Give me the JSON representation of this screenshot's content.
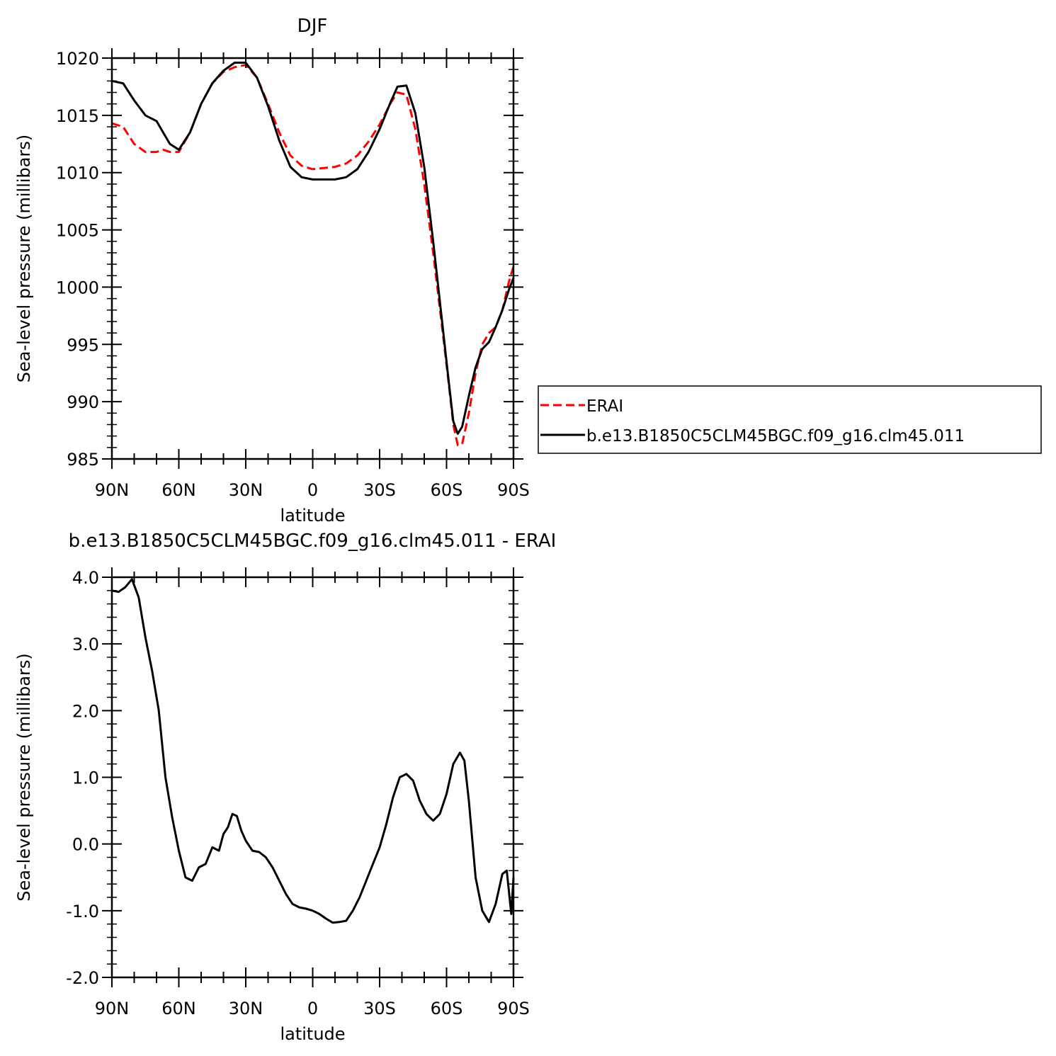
{
  "chart_data": [
    {
      "type": "line",
      "title": "DJF",
      "xlabel": "latitude",
      "ylabel": "Sea-level pressure (millibars)",
      "xlim": [
        90,
        -90
      ],
      "ylim": [
        985,
        1020
      ],
      "x_ticks": [
        90,
        60,
        30,
        0,
        -30,
        -60,
        -90
      ],
      "x_tick_labels": [
        "90N",
        "60N",
        "30N",
        "0",
        "30S",
        "60S",
        "90S"
      ],
      "y_ticks": [
        985,
        990,
        995,
        1000,
        1005,
        1010,
        1015,
        1020
      ],
      "y_tick_labels": [
        "985",
        "990",
        "995",
        "1000",
        "1005",
        "1010",
        "1015",
        "1020"
      ],
      "legend_position": "right",
      "grid": false,
      "series": [
        {
          "name": "ERAI",
          "color": "#ff0000",
          "style": "dashed",
          "x": [
            90,
            85,
            80,
            75,
            70,
            67,
            64,
            60,
            55,
            50,
            45,
            40,
            35,
            30,
            25,
            20,
            15,
            10,
            5,
            0,
            -5,
            -10,
            -15,
            -20,
            -25,
            -30,
            -35,
            -38,
            -42,
            -46,
            -50,
            -54,
            -58,
            -61,
            -63,
            -65,
            -67,
            -70,
            -73,
            -76,
            -79,
            -82,
            -85,
            -88,
            -90
          ],
          "y": [
            1014.3,
            1014.0,
            1012.5,
            1011.8,
            1011.8,
            1012.0,
            1011.8,
            1011.8,
            1013.5,
            1016.0,
            1017.8,
            1018.8,
            1019.2,
            1019.4,
            1018.3,
            1016.0,
            1013.5,
            1011.5,
            1010.6,
            1010.3,
            1010.4,
            1010.5,
            1010.8,
            1011.5,
            1012.7,
            1014.2,
            1016.1,
            1017.0,
            1016.8,
            1013.8,
            1009.0,
            1003.0,
            996.5,
            991.5,
            988.0,
            986.2,
            986.3,
            989.0,
            992.5,
            995.0,
            996.0,
            996.5,
            998.0,
            1000.5,
            1001.8
          ]
        },
        {
          "name": "b.e13.B1850C5CLM45BGC.f09_g16.clm45.011",
          "color": "#000000",
          "style": "solid",
          "x": [
            90,
            85,
            80,
            75,
            70,
            67,
            64,
            60,
            55,
            50,
            45,
            40,
            35,
            30,
            25,
            20,
            15,
            10,
            5,
            0,
            -5,
            -10,
            -15,
            -20,
            -25,
            -30,
            -35,
            -38,
            -42,
            -46,
            -50,
            -54,
            -58,
            -61,
            -63,
            -65,
            -67,
            -70,
            -73,
            -76,
            -79,
            -82,
            -85,
            -88,
            -90
          ],
          "y": [
            1018.0,
            1017.8,
            1016.3,
            1015.0,
            1014.5,
            1013.5,
            1012.5,
            1012.0,
            1013.5,
            1016.0,
            1017.8,
            1018.9,
            1019.6,
            1019.6,
            1018.3,
            1015.8,
            1012.8,
            1010.5,
            1009.6,
            1009.4,
            1009.4,
            1009.4,
            1009.6,
            1010.3,
            1011.8,
            1013.8,
            1016.2,
            1017.5,
            1017.6,
            1015.2,
            1010.5,
            1004.0,
            997.0,
            991.7,
            988.3,
            987.2,
            987.8,
            990.5,
            993.0,
            994.6,
            995.2,
            996.5,
            998.0,
            999.8,
            1000.8
          ]
        }
      ]
    },
    {
      "type": "line",
      "title": "b.e13.B1850C5CLM45BGC.f09_g16.clm45.011 - ERAI",
      "xlabel": "latitude",
      "ylabel": "Sea-level pressure (millibars)",
      "xlim": [
        90,
        -90
      ],
      "ylim": [
        -2.0,
        4.0
      ],
      "x_ticks": [
        90,
        60,
        30,
        0,
        -30,
        -60,
        -90
      ],
      "x_tick_labels": [
        "90N",
        "60N",
        "30N",
        "0",
        "30S",
        "60S",
        "90S"
      ],
      "y_ticks": [
        -2.0,
        -1.0,
        0.0,
        1.0,
        2.0,
        3.0,
        4.0
      ],
      "y_tick_labels": [
        "-2.0",
        "-1.0",
        "0.0",
        "1.0",
        "2.0",
        "3.0",
        "4.0"
      ],
      "grid": false,
      "series": [
        {
          "color": "#000000",
          "style": "solid",
          "x": [
            90,
            87,
            84,
            81,
            78,
            75,
            72,
            69,
            66,
            63,
            60,
            57,
            54,
            51,
            48,
            45,
            42,
            40,
            38,
            36,
            34,
            32,
            30,
            27,
            24,
            21,
            18,
            15,
            12,
            9,
            6,
            3,
            0,
            -3,
            -6,
            -9,
            -12,
            -15,
            -18,
            -21,
            -24,
            -27,
            -30,
            -33,
            -36,
            -39,
            -42,
            -45,
            -48,
            -51,
            -54,
            -57,
            -60,
            -63,
            -66,
            -68,
            -70,
            -73,
            -76,
            -79,
            -82,
            -85,
            -87,
            -89,
            -90
          ],
          "y": [
            3.8,
            3.78,
            3.85,
            3.97,
            3.7,
            3.1,
            2.6,
            2.0,
            1.0,
            0.4,
            -0.1,
            -0.5,
            -0.55,
            -0.35,
            -0.3,
            -0.05,
            -0.1,
            0.15,
            0.25,
            0.45,
            0.42,
            0.2,
            0.05,
            -0.1,
            -0.12,
            -0.2,
            -0.35,
            -0.55,
            -0.75,
            -0.9,
            -0.95,
            -0.97,
            -1.0,
            -1.05,
            -1.12,
            -1.18,
            -1.17,
            -1.15,
            -1.0,
            -0.8,
            -0.55,
            -0.3,
            -0.05,
            0.3,
            0.7,
            1.0,
            1.05,
            0.95,
            0.65,
            0.45,
            0.35,
            0.45,
            0.75,
            1.2,
            1.37,
            1.25,
            0.65,
            -0.5,
            -1.0,
            -1.17,
            -0.9,
            -0.45,
            -0.4,
            -1.05,
            -0.5
          ]
        }
      ]
    }
  ]
}
